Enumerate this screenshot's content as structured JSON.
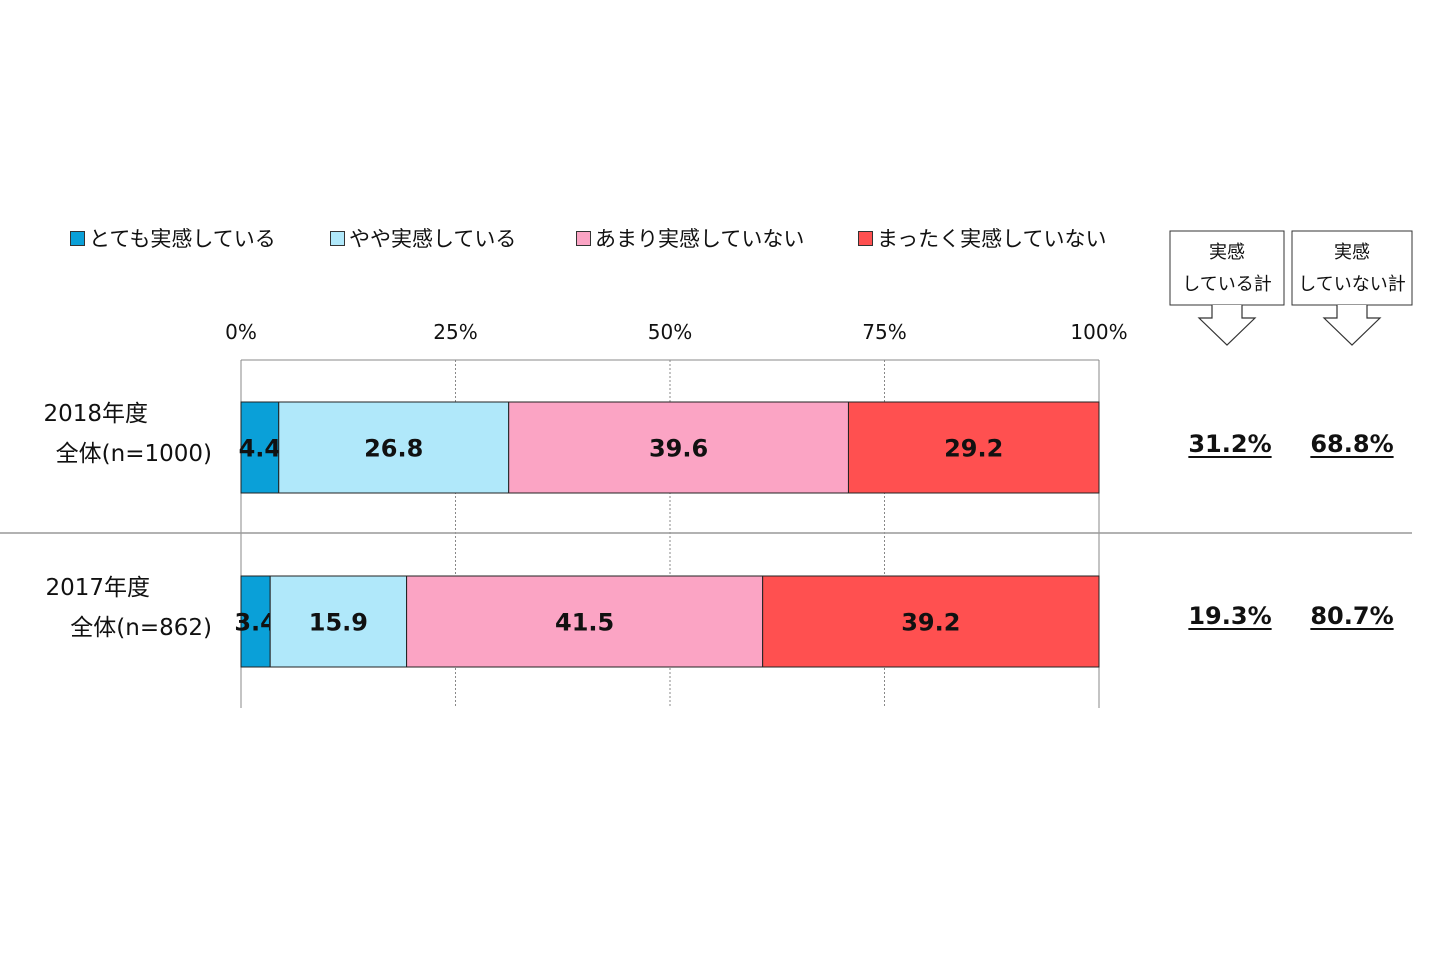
{
  "chart_data": {
    "type": "bar",
    "orientation": "horizontal",
    "stacked": true,
    "categories": [
      "2018年度\n全体(n=1000)",
      "2017年度\n全体(n=862)"
    ],
    "category_lines": [
      [
        "2018年度",
        "全体(n=1000)"
      ],
      [
        "2017年度",
        "全体(n=862)"
      ]
    ],
    "series": [
      {
        "name": "とても実感している",
        "values": [
          4.4,
          3.4
        ],
        "labels": [
          "4.4",
          "3.4"
        ],
        "color": "#0aa0d8"
      },
      {
        "name": "やや実感している",
        "values": [
          26.8,
          15.9
        ],
        "labels": [
          "26.8",
          "15.9"
        ],
        "color": "#b0e8fa"
      },
      {
        "name": "あまり実感していない",
        "values": [
          39.6,
          41.5
        ],
        "labels": [
          "39.6",
          "41.5"
        ],
        "color": "#fba4c4"
      },
      {
        "name": "まったく実感していない",
        "values": [
          29.2,
          39.2
        ],
        "labels": [
          "29.2",
          "39.2"
        ],
        "color": "#ff5050"
      }
    ],
    "x_ticks": [
      "0%",
      "25%",
      "50%",
      "75%",
      "100%"
    ],
    "xlim": [
      0,
      100
    ],
    "grid": true,
    "legend_position": "top",
    "summary_columns": [
      {
        "header_line1": "実感",
        "header_line2": "している計",
        "values": [
          "31.2%",
          "19.3%"
        ]
      },
      {
        "header_line1": "実感",
        "header_line2": "していない計",
        "values": [
          "68.8%",
          "80.7%"
        ]
      }
    ]
  }
}
